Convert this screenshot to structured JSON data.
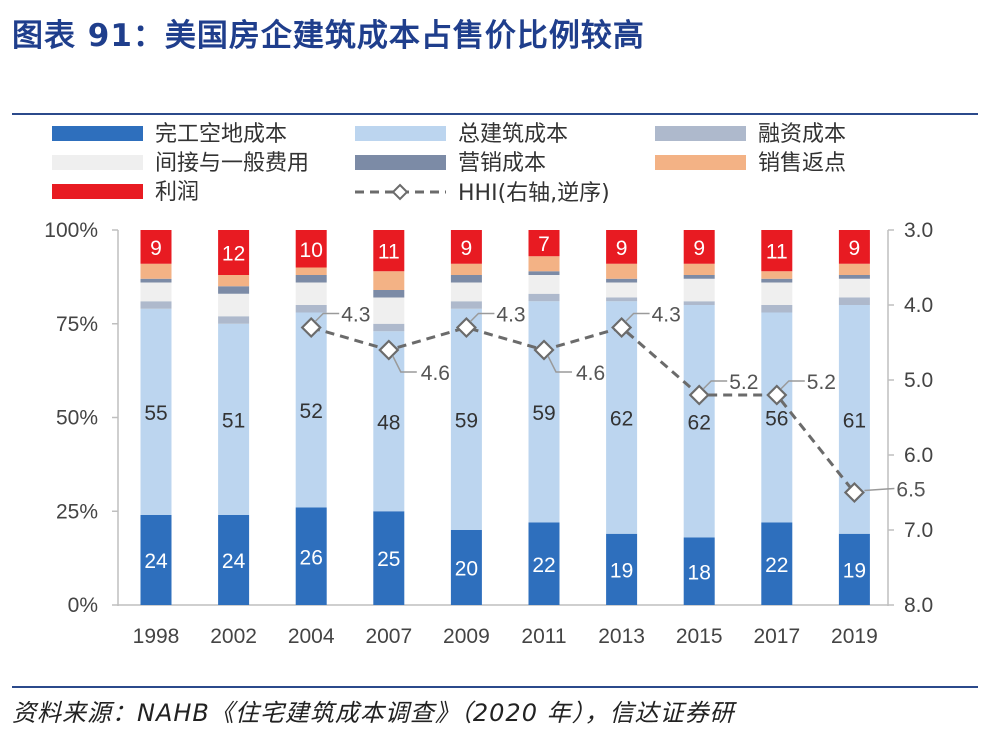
{
  "title": "图表 91：美国房企建筑成本占售价比例较高",
  "source": "资料来源：NAHB《住宅建筑成本调查》（2020 年），信达证券研",
  "chart_data": {
    "type": "bar",
    "stacked": true,
    "categories": [
      "1998",
      "2002",
      "2004",
      "2007",
      "2009",
      "2011",
      "2013",
      "2015",
      "2017",
      "2019"
    ],
    "ylim": [
      0,
      100
    ],
    "y_ticks": [
      "0%",
      "25%",
      "50%",
      "75%",
      "100%"
    ],
    "y2_ticks": [
      "3.0",
      "4.0",
      "5.0",
      "6.0",
      "7.0",
      "8.0"
    ],
    "y2lim": [
      3.0,
      8.0
    ],
    "y2_reversed": true,
    "series": [
      {
        "name": "完工空地成本",
        "color": "#2e6fbd",
        "label_color": "#ffffff",
        "show_labels": true,
        "values": [
          24,
          24,
          26,
          25,
          20,
          22,
          19,
          18,
          22,
          19
        ]
      },
      {
        "name": "总建筑成本",
        "color": "#bcd5ef",
        "label_color": "#333333",
        "show_labels": true,
        "values": [
          55,
          51,
          52,
          48,
          59,
          59,
          62,
          62,
          56,
          61
        ]
      },
      {
        "name": "融资成本",
        "color": "#aeb9cc",
        "label_color": "#333333",
        "show_labels": false,
        "values": [
          2,
          2,
          2,
          2,
          2,
          2,
          1,
          1,
          2,
          2
        ]
      },
      {
        "name": "间接与一般费用",
        "color": "#efefef",
        "label_color": "#333333",
        "show_labels": false,
        "values": [
          5,
          6,
          6,
          7,
          5,
          5,
          4,
          6,
          6,
          5
        ]
      },
      {
        "name": "营销成本",
        "color": "#7c8ba6",
        "label_color": "#333333",
        "show_labels": false,
        "values": [
          1,
          2,
          2,
          2,
          2,
          1,
          1,
          1,
          1,
          1
        ]
      },
      {
        "name": "销售返点",
        "color": "#f3b285",
        "label_color": "#333333",
        "show_labels": false,
        "values": [
          4,
          3,
          2,
          5,
          3,
          4,
          4,
          3,
          2,
          3
        ]
      },
      {
        "name": "利润",
        "color": "#e81b22",
        "label_color": "#ffffff",
        "show_labels": true,
        "values": [
          9,
          12,
          10,
          11,
          9,
          7,
          9,
          9,
          11,
          9
        ]
      }
    ],
    "line": {
      "name": "HHI(右轴,逆序)",
      "axis": "right",
      "color": "#6b6b6b",
      "values": [
        null,
        null,
        4.3,
        4.6,
        4.3,
        4.6,
        4.3,
        5.2,
        5.2,
        6.5
      ],
      "labels": [
        "",
        "",
        "4.3",
        "4.6",
        "4.3",
        "4.6",
        "4.3",
        "5.2",
        "5.2",
        "6.5"
      ]
    },
    "legend_position": "top",
    "grid": false
  }
}
